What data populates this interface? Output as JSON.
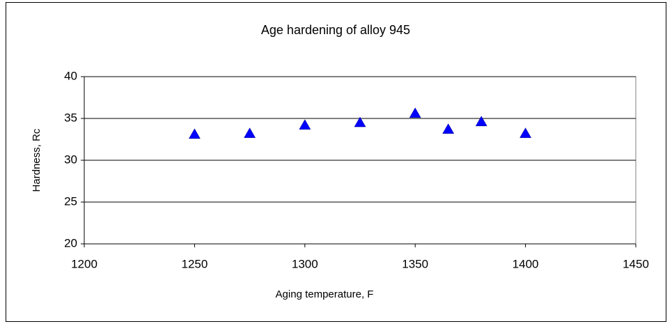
{
  "chart_data": {
    "type": "scatter",
    "title": "Age hardening of alloy 945",
    "x_label": "Aging temperature, F",
    "y_label": "Hardness, Rc",
    "x": [
      1250,
      1275,
      1300,
      1325,
      1350,
      1365,
      1380,
      1400
    ],
    "values": [
      33.1,
      33.2,
      34.2,
      34.5,
      35.6,
      33.7,
      34.6,
      33.2
    ],
    "color": "#0000ff",
    "xlim": [
      1200,
      1450
    ],
    "xticks": [
      1200,
      1250,
      1300,
      1350,
      1400,
      1450
    ],
    "ylim": [
      20,
      40
    ],
    "yticks": [
      20,
      25,
      30,
      35,
      40
    ],
    "grid": true
  }
}
